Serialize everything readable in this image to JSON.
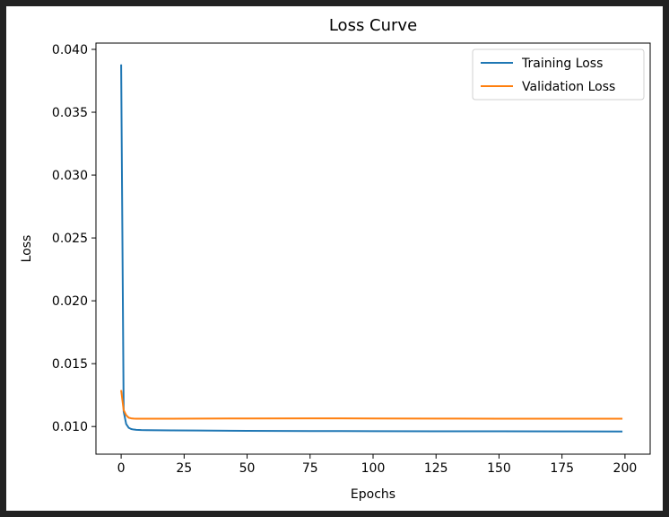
{
  "chart_data": {
    "type": "line",
    "title": "Loss Curve",
    "xlabel": "Epochs",
    "ylabel": "Loss",
    "xlim": [
      -10,
      210
    ],
    "ylim": [
      0.0078,
      0.0405
    ],
    "xticks": [
      0,
      25,
      50,
      75,
      100,
      125,
      150,
      175,
      200
    ],
    "xtick_labels": [
      "0",
      "25",
      "50",
      "75",
      "100",
      "125",
      "150",
      "175",
      "200"
    ],
    "yticks": [
      0.01,
      0.015,
      0.02,
      0.025,
      0.03,
      0.035,
      0.04
    ],
    "ytick_labels": [
      "0.010",
      "0.015",
      "0.020",
      "0.025",
      "0.030",
      "0.035",
      "0.040"
    ],
    "grid": false,
    "legend": {
      "placement": "top-right"
    },
    "series": [
      {
        "name": "Training Loss",
        "color": "#1f77b4",
        "x": [
          0,
          1,
          2,
          3,
          4,
          5,
          6,
          8,
          10,
          15,
          20,
          30,
          50,
          75,
          100,
          125,
          150,
          175,
          199
        ],
        "values": [
          0.0388,
          0.0112,
          0.0102,
          0.0099,
          0.0098,
          0.00976,
          0.00974,
          0.00972,
          0.00971,
          0.0097,
          0.00969,
          0.00968,
          0.00966,
          0.00964,
          0.00963,
          0.00962,
          0.00962,
          0.00961,
          0.0096
        ]
      },
      {
        "name": "Validation Loss",
        "color": "#ff7f0e",
        "x": [
          0,
          1,
          2,
          3,
          4,
          5,
          6,
          8,
          10,
          20,
          50,
          75,
          100,
          125,
          150,
          175,
          199
        ],
        "values": [
          0.0129,
          0.0113,
          0.0109,
          0.0107,
          0.01065,
          0.01063,
          0.01062,
          0.01062,
          0.01062,
          0.01062,
          0.01064,
          0.01065,
          0.01064,
          0.01063,
          0.01062,
          0.01062,
          0.01062
        ]
      }
    ]
  }
}
